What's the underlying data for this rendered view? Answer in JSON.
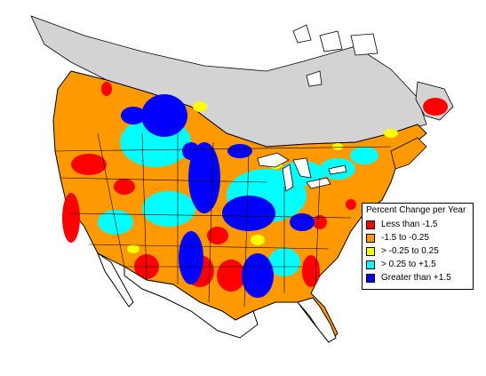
{
  "legend": {
    "title": "Percent Change per Year",
    "items": [
      {
        "label": "Less than -1.5",
        "color": "#ff0000"
      },
      {
        "label": "-1.5 to -0.25",
        "color": "#ff9900"
      },
      {
        "label": "> -0.25 to 0.25",
        "color": "#ffff00"
      },
      {
        "label": "> 0.25 to +1.5",
        "color": "#00ffff"
      },
      {
        "label": "Greater than +1.5",
        "color": "#0000ff"
      }
    ]
  },
  "colors": {
    "no_data": "#d3d3d3",
    "background": "#ffffff",
    "boundary": "#000000"
  }
}
